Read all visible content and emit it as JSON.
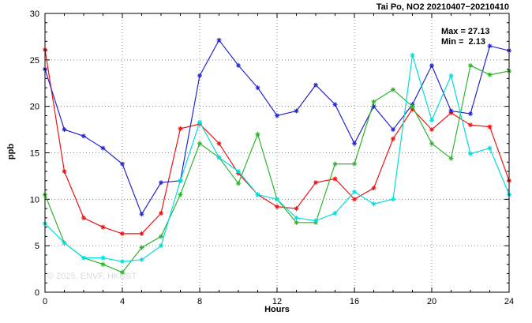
{
  "title": "Tai Po, NO2 20210407−20210410",
  "annotations": {
    "max": "Max = 27.13",
    "min": "Min =  2.13"
  },
  "watermark": "© 2025, ENVF, HKUST",
  "chart_data": {
    "type": "line",
    "title": "Tai Po, NO2 20210407−20210410",
    "xlabel": "Hours",
    "ylabel": "ppb",
    "xlim": [
      0,
      24
    ],
    "ylim": [
      0,
      30
    ],
    "xticks": [
      0,
      4,
      8,
      12,
      16,
      20,
      24
    ],
    "yticks": [
      0,
      5,
      10,
      15,
      20,
      25,
      30
    ],
    "grid": true,
    "legend_position": "none",
    "marker": "asterisk",
    "max_value": 27.13,
    "min_value": 2.13,
    "x": [
      0,
      1,
      2,
      3,
      4,
      5,
      6,
      7,
      8,
      9,
      10,
      11,
      12,
      13,
      14,
      15,
      16,
      17,
      18,
      19,
      20,
      21,
      22,
      23,
      24
    ],
    "series": [
      {
        "name": "red",
        "color": "#ee1111",
        "values": [
          26.1,
          13.0,
          8.0,
          7.0,
          6.3,
          6.3,
          8.5,
          17.6,
          18.1,
          16.0,
          12.8,
          10.5,
          9.2,
          9.0,
          11.8,
          12.2,
          10.0,
          11.2,
          16.5,
          19.7,
          17.5,
          19.3,
          18.0,
          17.8,
          12.0
        ]
      },
      {
        "name": "blue",
        "color": "#2525cc",
        "values": [
          24.0,
          17.5,
          16.8,
          15.5,
          13.8,
          8.4,
          11.8,
          12.0,
          23.3,
          27.13,
          24.4,
          22.0,
          19.0,
          19.5,
          22.3,
          20.2,
          16.0,
          20.0,
          17.5,
          20.2,
          24.4,
          19.5,
          19.2,
          26.5,
          26.0
        ]
      },
      {
        "name": "green",
        "color": "#2fb32f",
        "values": [
          10.5,
          5.3,
          3.7,
          3.0,
          2.13,
          4.8,
          6.0,
          10.5,
          16.0,
          14.5,
          11.7,
          17.0,
          10.0,
          7.5,
          7.5,
          13.8,
          13.8,
          20.5,
          21.8,
          20.0,
          16.0,
          14.4,
          24.4,
          23.4,
          23.8
        ]
      },
      {
        "name": "cyan",
        "color": "#00dddd",
        "values": [
          7.4,
          5.3,
          3.7,
          3.7,
          3.3,
          3.5,
          5.0,
          12.0,
          18.3,
          14.5,
          13.0,
          10.5,
          10.0,
          8.0,
          7.7,
          8.5,
          10.8,
          9.5,
          10.0,
          25.5,
          18.5,
          23.3,
          14.9,
          15.5,
          10.5
        ]
      }
    ]
  }
}
